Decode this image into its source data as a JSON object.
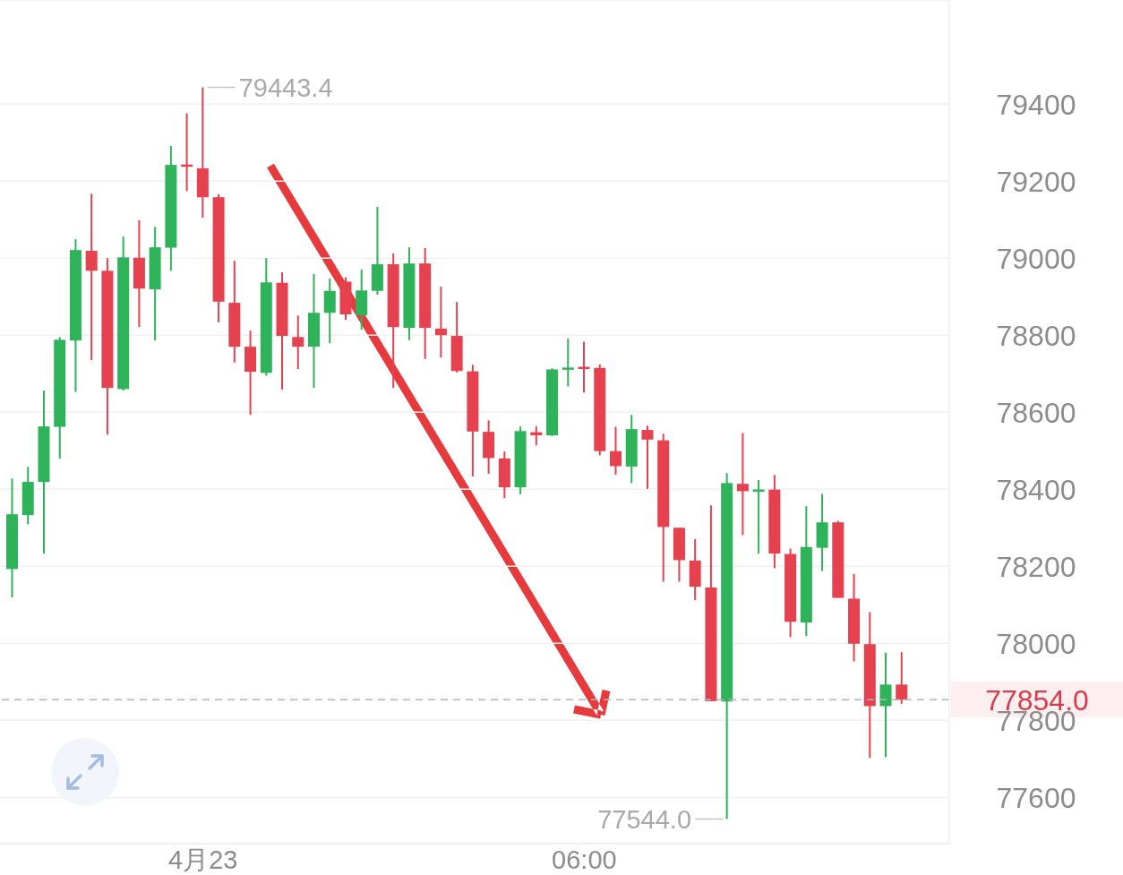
{
  "chart_data": {
    "type": "candlestick",
    "categories": [
      null,
      null,
      null,
      null,
      null,
      null,
      null,
      null,
      null,
      null,
      null,
      null,
      "4月23",
      null,
      null,
      null,
      null,
      null,
      null,
      null,
      null,
      null,
      null,
      null,
      null,
      null,
      null,
      null,
      null,
      null,
      null,
      null,
      null,
      null,
      null,
      null,
      "06:00",
      null,
      null,
      null,
      null,
      null,
      null,
      null,
      null,
      null,
      null,
      null,
      null,
      null,
      null,
      null,
      null,
      null,
      null,
      null,
      null
    ],
    "ohlc": [
      [
        78193,
        78428,
        78119,
        78335
      ],
      [
        78333,
        78458,
        78309,
        78419
      ],
      [
        78419,
        78656,
        78233,
        78563
      ],
      [
        78562,
        78795,
        78479,
        78788
      ],
      [
        78786,
        79049,
        78653,
        79021
      ],
      [
        79019,
        79167,
        78735,
        78967
      ],
      [
        78967,
        79000,
        78542,
        78663
      ],
      [
        78660,
        79056,
        78656,
        79002
      ],
      [
        79001,
        79098,
        78821,
        78921
      ],
      [
        78919,
        79081,
        78786,
        79028
      ],
      [
        79027,
        79291,
        78967,
        79242
      ],
      [
        79242,
        79376,
        79174,
        79238
      ],
      [
        79233,
        79443.4,
        79105,
        79158
      ],
      [
        79158,
        79166,
        78833,
        78887
      ],
      [
        78884,
        78993,
        78729,
        78770
      ],
      [
        78770,
        78812,
        78593,
        78705
      ],
      [
        78702,
        79000,
        78695,
        78937
      ],
      [
        78936,
        78963,
        78659,
        78798
      ],
      [
        78795,
        78851,
        78712,
        78770
      ],
      [
        78770,
        78959,
        78663,
        78858
      ],
      [
        78858,
        78947,
        78779,
        78915
      ],
      [
        78939,
        78950,
        78840,
        78854
      ],
      [
        78852,
        78970,
        78814,
        78916
      ],
      [
        78915,
        79133,
        78905,
        78984
      ],
      [
        78984,
        79012,
        78663,
        78821
      ],
      [
        78819,
        79028,
        78787,
        78986
      ],
      [
        78986,
        79026,
        78738,
        78819
      ],
      [
        78817,
        78926,
        78742,
        78800
      ],
      [
        78798,
        78886,
        78703,
        78707
      ],
      [
        78706,
        78723,
        78433,
        78550
      ],
      [
        78549,
        78579,
        78440,
        78481
      ],
      [
        78480,
        78498,
        78377,
        78405
      ],
      [
        78405,
        78563,
        78387,
        78551
      ],
      [
        78548,
        78563,
        78514,
        78540
      ],
      [
        78540,
        78714,
        78538,
        78711
      ],
      [
        78711,
        78791,
        78667,
        78715
      ],
      [
        78717,
        78783,
        78651,
        78713
      ],
      [
        78715,
        78724,
        78488,
        78499
      ],
      [
        78499,
        78562,
        78438,
        78460
      ],
      [
        78459,
        78593,
        78416,
        78556
      ],
      [
        78554,
        78565,
        78401,
        78529
      ],
      [
        78527,
        78544,
        78160,
        78302
      ],
      [
        78300,
        78300,
        78160,
        78216
      ],
      [
        78215,
        78271,
        78112,
        78147
      ],
      [
        78145,
        78358,
        77850,
        77850
      ],
      [
        77849,
        78442,
        77544,
        78416
      ],
      [
        78414,
        78546,
        78281,
        78395
      ],
      [
        78395,
        78424,
        78233,
        78398
      ],
      [
        78399,
        78437,
        78195,
        78233
      ],
      [
        78232,
        78246,
        78016,
        78056
      ],
      [
        78054,
        78356,
        78019,
        78250
      ],
      [
        78248,
        78388,
        78188,
        78314
      ],
      [
        78314,
        78318,
        78118,
        78118
      ],
      [
        78116,
        78180,
        77953,
        77999
      ],
      [
        77998,
        78081,
        77703,
        77837
      ],
      [
        77837,
        77976,
        77705,
        77893
      ],
      [
        77893,
        77977,
        77843,
        77854
      ]
    ],
    "colors": [
      "#2fb35a",
      "#2fb35a",
      "#2fb35a",
      "#2fb35a",
      "#2fb35a",
      "#e5414e",
      "#e5414e",
      "#2fb35a",
      "#e5414e",
      "#2fb35a",
      "#2fb35a",
      "#e5414e",
      "#e5414e",
      "#e5414e",
      "#e5414e",
      "#e5414e",
      "#2fb35a",
      "#e5414e",
      "#e5414e",
      "#2fb35a",
      "#2fb35a",
      "#e5414e",
      "#2fb35a",
      "#2fb35a",
      "#e5414e",
      "#2fb35a",
      "#e5414e",
      "#e5414e",
      "#e5414e",
      "#e5414e",
      "#e5414e",
      "#e5414e",
      "#2fb35a",
      "#e5414e",
      "#2fb35a",
      "#2fb35a",
      "#e5414e",
      "#e5414e",
      "#e5414e",
      "#2fb35a",
      "#e5414e",
      "#e5414e",
      "#e5414e",
      "#e5414e",
      "#e5414e",
      "#2fb35a",
      "#e5414e",
      "#2fb35a",
      "#e5414e",
      "#e5414e",
      "#2fb35a",
      "#2fb35a",
      "#e5414e",
      "#e5414e",
      "#e5414e",
      "#2fb35a",
      "#e5414e"
    ],
    "ylim": [
      77480,
      79670
    ],
    "yticks": [
      77600,
      77800,
      78000,
      78200,
      78400,
      78600,
      78800,
      79000,
      79200,
      79400
    ],
    "grid": "y",
    "ref_lines": [
      {
        "axis": "y",
        "value": 77854,
        "label": "77854.0",
        "color": "#b5b5b5",
        "line_style": "dashed"
      }
    ],
    "annotations": [
      {
        "text": "79443.4",
        "x": "4月23",
        "y": 79443.4
      },
      "77544.0"
    ]
  }
}
